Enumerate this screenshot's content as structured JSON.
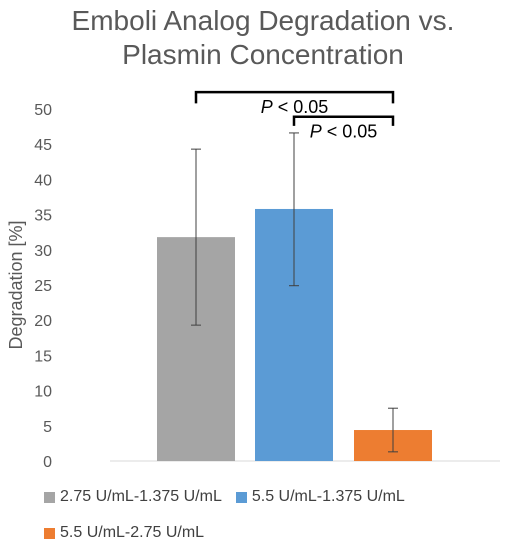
{
  "chart_data": {
    "type": "bar",
    "title_lines": [
      "Emboli Analog Degradation vs.",
      "Plasmin Concentration"
    ],
    "xlabel": "",
    "ylabel": "Degradation [%]",
    "ylim": [
      0,
      50
    ],
    "yticks": [
      0,
      5,
      10,
      15,
      20,
      25,
      30,
      35,
      40,
      45,
      50
    ],
    "grid": false,
    "legend_position": "bottom",
    "series": [
      {
        "name": "2.75 U/mL-1.375 U/mL",
        "value": 31.8,
        "error_low": 19.3,
        "error_high": 44.3,
        "color": "#a5a5a5"
      },
      {
        "name": "5.5 U/mL-1.375 U/mL",
        "value": 35.8,
        "error_low": 24.9,
        "error_high": 46.6,
        "color": "#5b9bd5"
      },
      {
        "name": "5.5 U/mL-2.75 U/mL",
        "value": 4.4,
        "error_low": 1.3,
        "error_high": 7.5,
        "color": "#ed7d31"
      }
    ],
    "annotations": [
      {
        "italic": "P",
        "text": " < 0.05",
        "from_series": 0,
        "to_series": 2,
        "bracket_y": 52.4,
        "drop_y": 50.8
      },
      {
        "italic": "P",
        "text": " < 0.05",
        "from_series": 1,
        "to_series": 2,
        "bracket_y": 48.9,
        "drop_y": 47.6
      }
    ]
  }
}
